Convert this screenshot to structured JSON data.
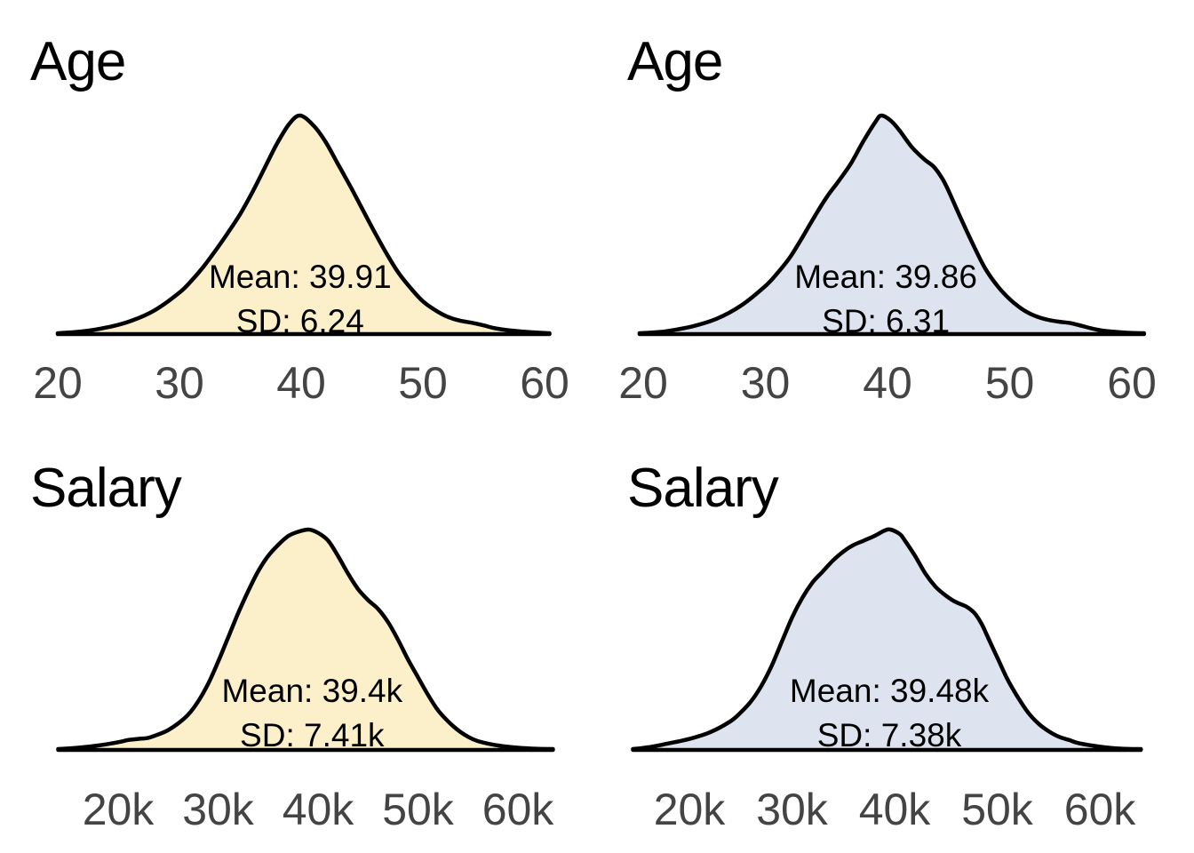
{
  "page": {
    "background_color": "#ffffff",
    "text_color": "#000000",
    "tick_label_color": "#444444",
    "curve_stroke_color": "#000000",
    "group_colors": {
      "left_column_fill": "#FCF0CA",
      "right_column_fill": "#DDE4F0"
    }
  },
  "chart_data": [
    {
      "type": "area",
      "title": "Age",
      "xlabel": "",
      "ylabel": "",
      "grid": false,
      "legend": "none",
      "y_axis": "hidden",
      "mean": 39.91,
      "sd": 6.24,
      "annotation": {
        "mean_label": "Mean: 39.91",
        "sd_label": "SD: 6.24"
      },
      "x_ticks": [
        20,
        30,
        40,
        50,
        60
      ],
      "x_tick_labels": [
        "20",
        "30",
        "40",
        "50",
        "60"
      ],
      "fill_color": "#FCF0CA",
      "line_color": "#000000",
      "density": {
        "x": [
          20,
          22,
          24,
          26,
          28,
          30,
          31,
          32,
          33,
          34,
          35,
          36,
          37,
          38,
          39,
          39.9,
          41,
          42,
          43,
          44,
          45,
          46,
          47,
          48,
          49,
          50,
          51,
          52,
          53,
          54,
          55,
          56,
          58,
          60,
          60.4
        ],
        "h_norm": [
          0.004,
          0.012,
          0.03,
          0.06,
          0.11,
          0.19,
          0.245,
          0.31,
          0.385,
          0.465,
          0.55,
          0.65,
          0.76,
          0.87,
          0.96,
          1.0,
          0.955,
          0.88,
          0.78,
          0.68,
          0.575,
          0.47,
          0.37,
          0.28,
          0.21,
          0.15,
          0.11,
          0.08,
          0.062,
          0.052,
          0.04,
          0.026,
          0.012,
          0.005,
          0.004
        ]
      }
    },
    {
      "type": "area",
      "title": "Age",
      "xlabel": "",
      "ylabel": "",
      "grid": false,
      "legend": "none",
      "y_axis": "hidden",
      "mean": 39.86,
      "sd": 6.31,
      "annotation": {
        "mean_label": "Mean: 39.86",
        "sd_label": "SD: 6.31"
      },
      "x_ticks": [
        20,
        30,
        40,
        50,
        60
      ],
      "x_tick_labels": [
        "20",
        "30",
        "40",
        "50",
        "60"
      ],
      "fill_color": "#DDE4F0",
      "line_color": "#000000",
      "density": {
        "x": [
          19.7,
          21,
          22,
          24,
          26,
          28,
          30,
          31,
          32,
          33,
          34,
          35,
          36,
          37,
          38,
          39,
          39.5,
          40.3,
          41,
          42,
          43,
          43.8,
          44.5,
          45,
          46,
          47,
          48,
          49,
          50,
          51,
          52,
          53,
          54,
          55,
          56,
          57,
          58,
          60,
          61
        ],
        "h_norm": [
          0.004,
          0.008,
          0.014,
          0.035,
          0.07,
          0.13,
          0.22,
          0.28,
          0.35,
          0.44,
          0.535,
          0.625,
          0.7,
          0.78,
          0.88,
          0.97,
          1.0,
          0.975,
          0.93,
          0.855,
          0.8,
          0.765,
          0.71,
          0.655,
          0.53,
          0.41,
          0.3,
          0.22,
          0.16,
          0.115,
          0.085,
          0.067,
          0.057,
          0.05,
          0.036,
          0.022,
          0.013,
          0.005,
          0.004
        ]
      }
    },
    {
      "type": "area",
      "title": "Salary",
      "xlabel": "",
      "ylabel": "",
      "grid": false,
      "legend": "none",
      "y_axis": "hidden",
      "mean": 39.4,
      "sd": 7.41,
      "annotation": {
        "mean_label": "Mean: 39.4k",
        "sd_label": "SD: 7.41k"
      },
      "x_ticks": [
        20,
        30,
        40,
        50,
        60
      ],
      "x_tick_labels": [
        "20k",
        "30k",
        "40k",
        "50k",
        "60k"
      ],
      "fill_color": "#FCF0CA",
      "line_color": "#000000",
      "density": {
        "x": [
          14,
          16,
          18,
          20,
          21,
          22,
          23,
          24,
          25,
          26,
          27,
          28,
          29,
          30,
          31,
          32,
          33,
          34,
          35,
          36,
          37,
          38,
          39.1,
          40,
          41,
          42,
          43,
          44,
          45,
          46,
          47,
          48,
          49,
          50,
          51,
          52,
          53,
          54,
          55,
          56,
          58,
          60,
          62,
          63.5
        ],
        "h_norm": [
          0.004,
          0.01,
          0.02,
          0.035,
          0.045,
          0.05,
          0.055,
          0.07,
          0.09,
          0.12,
          0.16,
          0.22,
          0.3,
          0.4,
          0.51,
          0.62,
          0.72,
          0.81,
          0.88,
          0.93,
          0.97,
          0.99,
          1.0,
          0.985,
          0.95,
          0.88,
          0.8,
          0.73,
          0.68,
          0.64,
          0.58,
          0.5,
          0.41,
          0.33,
          0.25,
          0.18,
          0.13,
          0.09,
          0.06,
          0.04,
          0.02,
          0.01,
          0.005,
          0.004
        ]
      }
    },
    {
      "type": "area",
      "title": "Salary",
      "xlabel": "",
      "ylabel": "",
      "grid": false,
      "legend": "none",
      "y_axis": "hidden",
      "mean": 39.48,
      "sd": 7.38,
      "annotation": {
        "mean_label": "Mean: 39.48k",
        "sd_label": "SD: 7.38k"
      },
      "x_ticks": [
        20,
        30,
        40,
        50,
        60
      ],
      "x_tick_labels": [
        "20k",
        "30k",
        "40k",
        "50k",
        "60k"
      ],
      "fill_color": "#DDE4F0",
      "line_color": "#000000",
      "density": {
        "x": [
          14.5,
          16,
          18,
          20,
          22,
          24,
          25,
          26,
          27,
          28,
          29,
          30,
          31,
          32,
          33,
          34,
          35,
          36,
          37,
          38,
          39,
          39.6,
          40.5,
          41,
          42,
          43,
          44,
          45,
          46,
          47,
          47.8,
          48.5,
          49,
          50,
          51,
          52,
          53,
          54,
          55,
          56,
          57,
          58,
          60,
          62,
          64
        ],
        "h_norm": [
          0.004,
          0.012,
          0.03,
          0.05,
          0.08,
          0.13,
          0.17,
          0.22,
          0.29,
          0.38,
          0.49,
          0.6,
          0.69,
          0.76,
          0.81,
          0.86,
          0.9,
          0.93,
          0.95,
          0.97,
          0.995,
          1.0,
          0.98,
          0.95,
          0.88,
          0.8,
          0.74,
          0.7,
          0.67,
          0.65,
          0.62,
          0.57,
          0.52,
          0.42,
          0.32,
          0.24,
          0.17,
          0.12,
          0.085,
          0.06,
          0.045,
          0.03,
          0.015,
          0.006,
          0.004
        ]
      }
    }
  ]
}
